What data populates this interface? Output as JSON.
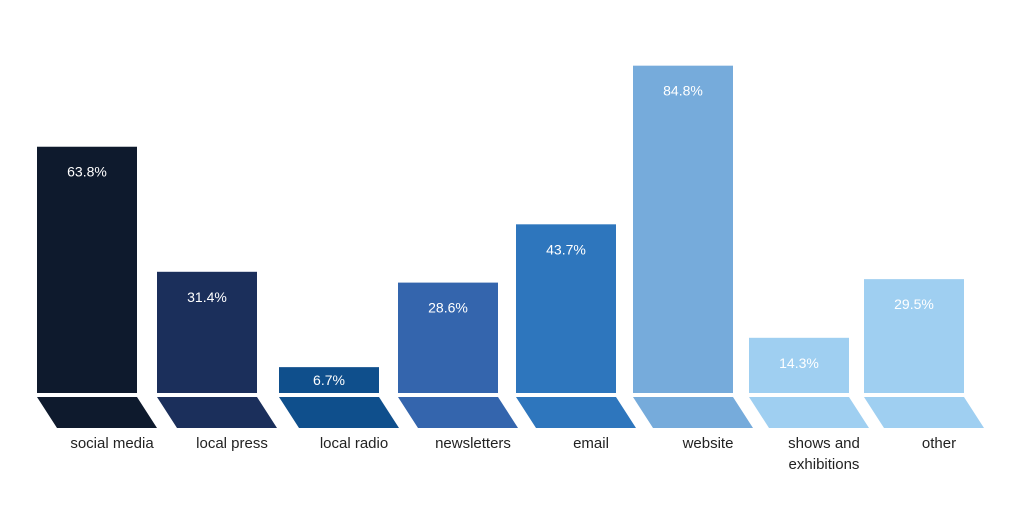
{
  "chart_data": {
    "type": "bar",
    "categories": [
      "social media",
      "local press",
      "local radio",
      "newsletters",
      "email",
      "website",
      "shows and exhibitions",
      "other"
    ],
    "category_lines": [
      [
        "social media"
      ],
      [
        "local press"
      ],
      [
        "local radio"
      ],
      [
        "newsletters"
      ],
      [
        "email"
      ],
      [
        "website"
      ],
      [
        "shows and",
        "exhibitions"
      ],
      [
        "other"
      ]
    ],
    "values": [
      63.8,
      31.4,
      6.7,
      28.6,
      43.7,
      84.8,
      14.3,
      29.5
    ],
    "value_labels": [
      "63.8%",
      "31.4%",
      "6.7%",
      "28.6%",
      "43.7%",
      "84.8%",
      "14.3%",
      "29.5%"
    ],
    "colors": [
      "#0e1a2d",
      "#1b2f5b",
      "#0f4f8c",
      "#3465ad",
      "#2e76bd",
      "#76abdb",
      "#9fcff1",
      "#9fcff1"
    ],
    "title": "",
    "xlabel": "",
    "ylabel": "",
    "ylim": [
      0,
      100
    ],
    "grid": false,
    "legend": "none"
  }
}
